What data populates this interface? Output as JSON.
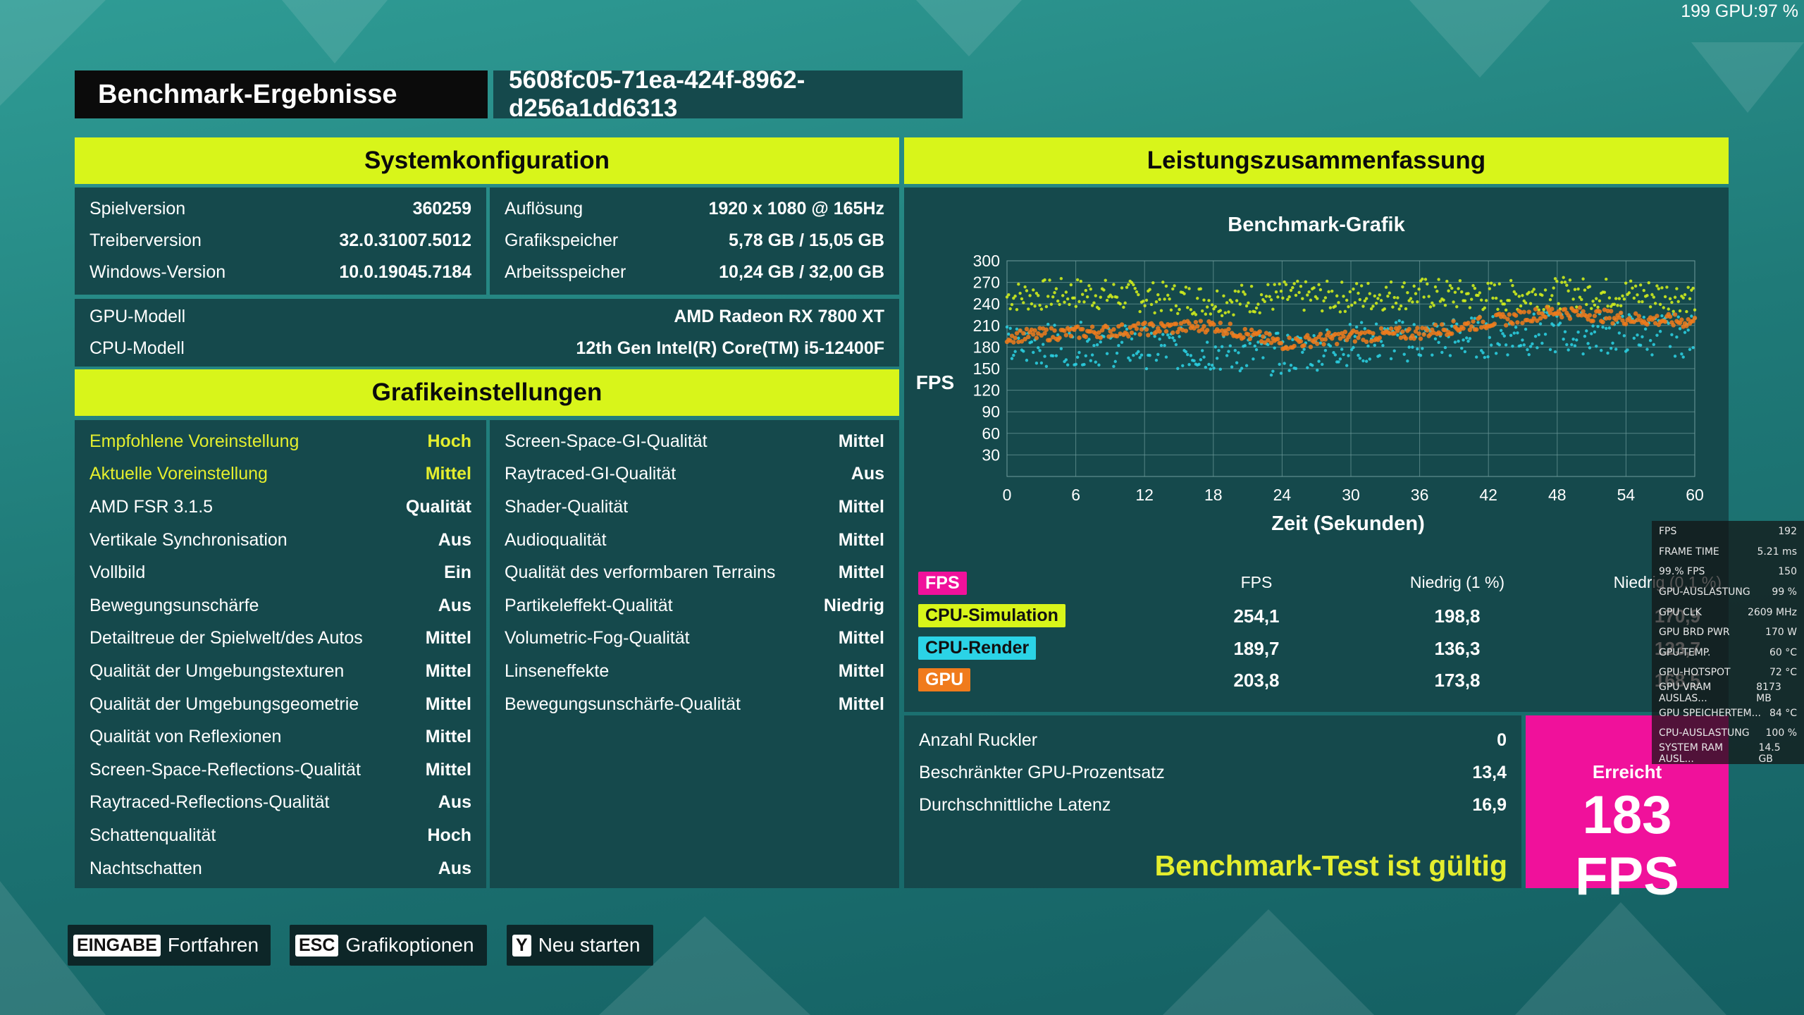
{
  "overlay_top": "199 GPU:97 %",
  "header": {
    "title": "Benchmark-Ergebnisse",
    "run_id": "5608fc05-71ea-424f-8962-d256a1dd6313"
  },
  "system": {
    "heading": "Systemkonfiguration",
    "left": [
      {
        "label": "Spielversion",
        "value": "360259"
      },
      {
        "label": "Treiberversion",
        "value": "32.0.31007.5012"
      },
      {
        "label": "Windows-Version",
        "value": "10.0.19045.7184"
      }
    ],
    "right": [
      {
        "label": "Auflösung",
        "value": "1920 x 1080 @ 165Hz"
      },
      {
        "label": "Grafikspeicher",
        "value": "5,78 GB / 15,05 GB"
      },
      {
        "label": "Arbeitsspeicher",
        "value": "10,24 GB / 32,00 GB"
      }
    ],
    "hw": [
      {
        "label": "GPU-Modell",
        "value": "AMD Radeon RX 7800 XT"
      },
      {
        "label": "CPU-Modell",
        "value": "12th Gen Intel(R) Core(TM) i5-12400F"
      }
    ]
  },
  "graphics": {
    "heading": "Grafikeinstellungen",
    "left": [
      {
        "label": "Empfohlene Voreinstellung",
        "value": "Hoch"
      },
      {
        "label": "Aktuelle Voreinstellung",
        "value": "Mittel"
      },
      {
        "label": "AMD FSR 3.1.5",
        "value": "Qualität"
      },
      {
        "label": "Vertikale Synchronisation",
        "value": "Aus"
      },
      {
        "label": "Vollbild",
        "value": "Ein"
      },
      {
        "label": "Bewegungsunschärfe",
        "value": "Aus"
      },
      {
        "label": "Detailtreue der Spielwelt/des Autos",
        "value": "Mittel"
      },
      {
        "label": "Qualität der Umgebungstexturen",
        "value": "Mittel"
      },
      {
        "label": "Qualität der Umgebungsgeometrie",
        "value": "Mittel"
      },
      {
        "label": "Qualität von Reflexionen",
        "value": "Mittel"
      },
      {
        "label": "Screen-Space-Reflections-Qualität",
        "value": "Mittel"
      },
      {
        "label": "Raytraced-Reflections-Qualität",
        "value": "Aus"
      },
      {
        "label": "Schattenqualität",
        "value": "Hoch"
      },
      {
        "label": "Nachtschatten",
        "value": "Aus"
      }
    ],
    "right": [
      {
        "label": "Screen-Space-GI-Qualität",
        "value": "Mittel"
      },
      {
        "label": "Raytraced-GI-Qualität",
        "value": "Aus"
      },
      {
        "label": "Shader-Qualität",
        "value": "Mittel"
      },
      {
        "label": "Audioqualität",
        "value": "Mittel"
      },
      {
        "label": "Qualität des verformbaren Terrains",
        "value": "Mittel"
      },
      {
        "label": "Partikeleffekt-Qualität",
        "value": "Niedrig"
      },
      {
        "label": "Volumetric-Fog-Qualität",
        "value": "Mittel"
      },
      {
        "label": "Linseneffekte",
        "value": "Mittel"
      },
      {
        "label": "Bewegungsunschärfe-Qualität",
        "value": "Mittel"
      }
    ]
  },
  "performance": {
    "heading": "Leistungszusammenfassung",
    "table": {
      "tag": "FPS",
      "headers": [
        "FPS",
        "Niedrig (1 %)",
        "Niedrig (0,1 %)"
      ],
      "rows": [
        {
          "name": "CPU-Simulation",
          "color": "#d8f51a",
          "values": [
            "254,1",
            "198,8",
            "170,9"
          ]
        },
        {
          "name": "CPU-Render",
          "color": "#2bd3e6",
          "values": [
            "189,7",
            "136,3",
            "123,7"
          ]
        },
        {
          "name": "GPU",
          "color": "#f07b1c",
          "values": [
            "203,8",
            "173,8",
            "168,5"
          ]
        }
      ]
    },
    "stats": [
      {
        "label": "Anzahl Ruckler",
        "value": "0"
      },
      {
        "label": "Beschränkter GPU-Prozentsatz",
        "value": "13,4"
      },
      {
        "label": "Durchschnittliche Latenz",
        "value": "16,9"
      }
    ],
    "valid_text": "Benchmark-Test ist gültig",
    "achieved_label": "Erreicht",
    "achieved_value": "183 FPS"
  },
  "chart_data": {
    "type": "scatter",
    "title": "Benchmark-Grafik",
    "xlabel": "Zeit (Sekunden)",
    "ylabel": "FPS",
    "xlim": [
      0,
      60
    ],
    "ylim": [
      0,
      300
    ],
    "x_ticks": [
      0,
      6,
      12,
      18,
      24,
      30,
      36,
      42,
      48,
      54,
      60
    ],
    "y_ticks": [
      30,
      60,
      90,
      120,
      150,
      180,
      210,
      240,
      270,
      300
    ],
    "grid": true,
    "series": [
      {
        "name": "CPU-Simulation",
        "color": "#d8f51a",
        "x": [
          0,
          6,
          12,
          18,
          24,
          30,
          36,
          42,
          48,
          54,
          60
        ],
        "values": [
          250,
          255,
          250,
          245,
          250,
          250,
          255,
          250,
          255,
          255,
          250
        ]
      },
      {
        "name": "CPU-Render",
        "color": "#2bd3e6",
        "x": [
          0,
          6,
          12,
          18,
          24,
          30,
          36,
          42,
          48,
          54,
          60
        ],
        "values": [
          180,
          185,
          180,
          175,
          170,
          185,
          190,
          195,
          200,
          200,
          195
        ]
      },
      {
        "name": "GPU",
        "color": "#f07b1c",
        "x": [
          0,
          6,
          12,
          18,
          24,
          30,
          36,
          42,
          48,
          54,
          60
        ],
        "values": [
          195,
          200,
          205,
          210,
          185,
          195,
          200,
          215,
          230,
          220,
          215
        ]
      }
    ]
  },
  "buttons": [
    {
      "key": "EINGABE",
      "label": "Fortfahren"
    },
    {
      "key": "ESC",
      "label": "Grafikoptionen"
    },
    {
      "key": "Y",
      "label": "Neu starten"
    }
  ],
  "overlay": [
    {
      "label": "FPS",
      "value": "192"
    },
    {
      "label": "FRAME TIME",
      "value": "5.21 ms"
    },
    {
      "label": "99.% FPS",
      "value": "150"
    },
    {
      "label": "GPU-AUSLASTUNG",
      "value": "99 %"
    },
    {
      "label": "GPU CLK",
      "value": "2609 MHz"
    },
    {
      "label": "GPU BRD PWR",
      "value": "170 W"
    },
    {
      "label": "GPU-TEMP.",
      "value": "60 °C"
    },
    {
      "label": "GPU-HOTSPOT",
      "value": "72 °C"
    },
    {
      "label": "GPU VRAM AUSLAS...",
      "value": "8173 MB"
    },
    {
      "label": "GPU SPEICHERTEM...",
      "value": "84 °C"
    },
    {
      "label": "CPU-AUSLASTUNG",
      "value": "100 %"
    },
    {
      "label": "SYSTEM RAM AUSL...",
      "value": "14.5 GB"
    }
  ]
}
